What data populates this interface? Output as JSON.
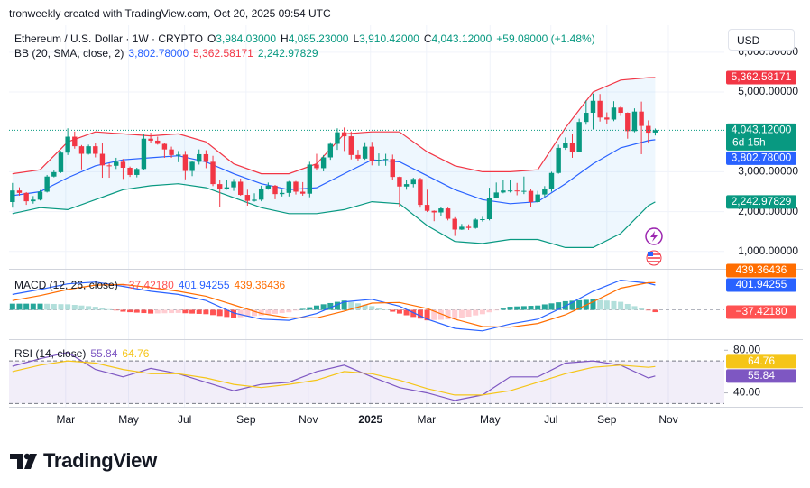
{
  "header": {
    "credit": "tronweekly created with TradingView.com, Oct 20, 2025 09:54 UTC",
    "button": "USD"
  },
  "footer": "TradingView",
  "chart_data": [
    {
      "type": "candlestick",
      "title": "Ethereum / U.S. Dollar · 1W · CRYPTO",
      "legend": [
        {
          "key": "O",
          "value": "3,984.03000"
        },
        {
          "key": "H",
          "value": "4,085.23000"
        },
        {
          "key": "L",
          "value": "3,910.42000"
        },
        {
          "key": "C",
          "value": "4,043.12000"
        }
      ],
      "change": "+59.08000 (+1.48%)",
      "countdown": "6d 15h",
      "colors": {
        "up": "#089981",
        "down": "#f23645"
      },
      "candles": [
        [
          2240,
          2720,
          2100,
          2530
        ],
        [
          2530,
          2610,
          2400,
          2470
        ],
        [
          2470,
          2490,
          2170,
          2260
        ],
        [
          2260,
          2390,
          2200,
          2300
        ],
        [
          2300,
          2540,
          2280,
          2500
        ],
        [
          2500,
          2920,
          2480,
          2880
        ],
        [
          2880,
          3030,
          2860,
          2990
        ],
        [
          2990,
          3520,
          2970,
          3480
        ],
        [
          3480,
          4090,
          3420,
          3880
        ],
        [
          3880,
          4010,
          3580,
          3640
        ],
        [
          3640,
          3670,
          3060,
          3450
        ],
        [
          3450,
          3680,
          3430,
          3640
        ],
        [
          3640,
          3730,
          3360,
          3450
        ],
        [
          3450,
          3720,
          2850,
          3160
        ],
        [
          3160,
          3210,
          2850,
          3150
        ],
        [
          3150,
          3350,
          3070,
          3250
        ],
        [
          3250,
          3320,
          2820,
          3100
        ],
        [
          3100,
          3130,
          2870,
          2920
        ],
        [
          2920,
          3100,
          2860,
          3070
        ],
        [
          3070,
          3950,
          3050,
          3830
        ],
        [
          3830,
          3980,
          3730,
          3780
        ],
        [
          3780,
          3880,
          3680,
          3700
        ],
        [
          3700,
          3720,
          3350,
          3560
        ],
        [
          3560,
          3630,
          3350,
          3420
        ],
        [
          3420,
          3520,
          3240,
          3430
        ],
        [
          3430,
          3520,
          2810,
          3020
        ],
        [
          3020,
          3270,
          2890,
          3250
        ],
        [
          3250,
          3560,
          3180,
          3440
        ],
        [
          3440,
          3540,
          3090,
          3250
        ],
        [
          3250,
          3400,
          2640,
          2690
        ],
        [
          2690,
          2790,
          2120,
          2560
        ],
        [
          2560,
          2790,
          2550,
          2610
        ],
        [
          2610,
          2820,
          2520,
          2750
        ],
        [
          2750,
          2830,
          2400,
          2420
        ],
        [
          2420,
          2550,
          2150,
          2270
        ],
        [
          2270,
          2460,
          2250,
          2300
        ],
        [
          2300,
          2650,
          2260,
          2580
        ],
        [
          2580,
          2730,
          2550,
          2650
        ],
        [
          2650,
          2670,
          2310,
          2440
        ],
        [
          2440,
          2550,
          2380,
          2470
        ],
        [
          2470,
          2770,
          2380,
          2750
        ],
        [
          2750,
          2770,
          2430,
          2500
        ],
        [
          2500,
          2740,
          2400,
          2450
        ],
        [
          2450,
          3250,
          2360,
          3180
        ],
        [
          3180,
          3450,
          3030,
          3090
        ],
        [
          3090,
          3420,
          3010,
          3360
        ],
        [
          3360,
          3740,
          3300,
          3700
        ],
        [
          3700,
          4090,
          3550,
          3990
        ],
        [
          3990,
          4110,
          3520,
          3890
        ],
        [
          3890,
          4010,
          3310,
          3420
        ],
        [
          3420,
          3550,
          3260,
          3330
        ],
        [
          3330,
          3740,
          3300,
          3630
        ],
        [
          3630,
          3750,
          3160,
          3270
        ],
        [
          3270,
          3460,
          3150,
          3300
        ],
        [
          3300,
          3450,
          3150,
          3320
        ],
        [
          3320,
          3430,
          2800,
          2870
        ],
        [
          2870,
          2880,
          2120,
          2630
        ],
        [
          2630,
          2790,
          2550,
          2690
        ],
        [
          2690,
          2850,
          2610,
          2820
        ],
        [
          2820,
          2850,
          2100,
          2170
        ],
        [
          2170,
          2550,
          1990,
          2020
        ],
        [
          2020,
          2030,
          1760,
          1980
        ],
        [
          1980,
          2120,
          1890,
          2080
        ],
        [
          2080,
          2100,
          1780,
          1820
        ],
        [
          1820,
          1860,
          1390,
          1550
        ],
        [
          1550,
          1690,
          1540,
          1620
        ],
        [
          1620,
          1680,
          1540,
          1590
        ],
        [
          1590,
          1830,
          1570,
          1800
        ],
        [
          1800,
          1870,
          1750,
          1810
        ],
        [
          1810,
          2600,
          1780,
          2350
        ],
        [
          2350,
          2730,
          2330,
          2480
        ],
        [
          2480,
          2790,
          2460,
          2530
        ],
        [
          2530,
          2790,
          2480,
          2530
        ],
        [
          2530,
          2720,
          2410,
          2510
        ],
        [
          2510,
          2880,
          2440,
          2520
        ],
        [
          2520,
          2560,
          2120,
          2240
        ],
        [
          2240,
          2520,
          2230,
          2430
        ],
        [
          2430,
          2640,
          2370,
          2560
        ],
        [
          2560,
          3000,
          2500,
          2970
        ],
        [
          2970,
          3680,
          2950,
          3600
        ],
        [
          3600,
          3860,
          3550,
          3720
        ],
        [
          3720,
          3940,
          3350,
          3490
        ],
        [
          3490,
          4330,
          3490,
          4250
        ],
        [
          4250,
          4790,
          4180,
          4480
        ],
        [
          4480,
          4960,
          4060,
          4780
        ],
        [
          4780,
          4950,
          4260,
          4360
        ],
        [
          4360,
          4490,
          4210,
          4310
        ],
        [
          4310,
          4770,
          4270,
          4610
        ],
        [
          4610,
          4640,
          4400,
          4480
        ],
        [
          4480,
          4490,
          3830,
          4020
        ],
        [
          4020,
          4590,
          3990,
          4510
        ],
        [
          4510,
          4760,
          3440,
          4150
        ],
        [
          4150,
          4290,
          3710,
          3980
        ],
        [
          3984.03,
          4085.23,
          3910.42,
          4043.12
        ]
      ],
      "overlay": {
        "title": "BB (20, SMA, close, 2)",
        "fill": "rgba(33,150,243,0.08)",
        "x": [
          0,
          4,
          8,
          12,
          16,
          20,
          24,
          28,
          32,
          36,
          40,
          44,
          48,
          52,
          56,
          60,
          64,
          68,
          72,
          76,
          80,
          84,
          88,
          92,
          93
        ],
        "series": [
          {
            "label": "3,802.78000",
            "color": "#2962ff",
            "values": [
              2400,
              2500,
              2850,
              3150,
              3300,
              3350,
              3400,
              3250,
              2950,
              2700,
              2550,
              2600,
              2950,
              3300,
              3250,
              2900,
              2550,
              2300,
              2200,
              2250,
              2700,
              3200,
              3600,
              3780,
              3802.78
            ]
          },
          {
            "label": "5,362.58171",
            "color": "#f23645",
            "values": [
              2950,
              3050,
              3750,
              4000,
              3950,
              3900,
              3950,
              3750,
              3200,
              2950,
              2950,
              3200,
              3950,
              4000,
              4000,
              3500,
              3150,
              3000,
              3000,
              3050,
              4100,
              5000,
              5300,
              5360,
              5362.58171
            ]
          },
          {
            "label": "2,242.97829",
            "color": "#089981",
            "values": [
              1950,
              2100,
              2050,
              2300,
              2550,
              2650,
              2700,
              2600,
              2350,
              2100,
              1950,
              1950,
              2050,
              2250,
              2200,
              1650,
              1250,
              1200,
              1300,
              1300,
              1100,
              1100,
              1450,
              2150,
              2242.97829
            ]
          }
        ]
      },
      "xlim": [
        -0.5,
        102.6
      ],
      "xticks": [
        {
          "value": 7.7,
          "label": "Mar"
        },
        {
          "value": 16.8,
          "label": "May"
        },
        {
          "value": 24.9,
          "label": "Jul"
        },
        {
          "value": 33.8,
          "label": "Sep"
        },
        {
          "value": 42.8,
          "label": "Nov"
        },
        {
          "value": 51.8,
          "label": "2025"
        },
        {
          "value": 59.9,
          "label": "Mar"
        },
        {
          "value": 69.1,
          "label": "May"
        },
        {
          "value": 77.9,
          "label": "Jul"
        },
        {
          "value": 86,
          "label": "Sep"
        },
        {
          "value": 94.9,
          "label": "Nov"
        }
      ],
      "ylim": [
        588,
        6630
      ],
      "yticks": [
        {
          "value": 1000,
          "label": "1,000.00000"
        },
        {
          "value": 2000,
          "label": "2,000.00000"
        },
        {
          "value": 3000,
          "label": "3,000.00000"
        },
        {
          "value": 5000,
          "label": "5,000.00000"
        },
        {
          "value": 6000,
          "label": "6,000.00000"
        }
      ],
      "grid": true
    },
    {
      "type": "macd",
      "title": "MACD (12, 26, close)",
      "histogram": {
        "label": "−37.42180",
        "colors": {
          "up_strong": "#26a69a",
          "up_weak": "#b2dfdb",
          "down_strong": "#ff5252",
          "down_weak": "#ffcdd2"
        },
        "values": [
          100,
          100,
          100,
          100,
          100,
          98,
          95,
          92,
          90,
          80,
          70,
          60,
          50,
          30,
          10,
          -10,
          -30,
          -38,
          -45,
          -52,
          -60,
          -58,
          -55,
          -52,
          -50,
          -55,
          -60,
          -65,
          -70,
          -85,
          -100,
          -115,
          -130,
          -120,
          -110,
          -100,
          -90,
          -78,
          -65,
          -52,
          -40,
          -12,
          15,
          42,
          70,
          90,
          110,
          130,
          150,
          128,
          105,
          82,
          60,
          30,
          0,
          -30,
          -60,
          -88,
          -115,
          -142,
          -170,
          -165,
          -160,
          -155,
          -150,
          -130,
          -110,
          -90,
          -70,
          -40,
          -10,
          20,
          50,
          55,
          60,
          65,
          70,
          88,
          105,
          122,
          140,
          148,
          155,
          162,
          170,
          160,
          150,
          140,
          130,
          95,
          60,
          25,
          -10,
          -37.4218
        ]
      },
      "x": [
        0,
        4,
        8,
        12,
        16,
        20,
        24,
        28,
        32,
        36,
        40,
        44,
        48,
        52,
        56,
        60,
        64,
        68,
        72,
        76,
        80,
        84,
        88,
        92,
        93
      ],
      "series": [
        {
          "label": "401.94255",
          "color": "#2962ff",
          "values": [
            250,
            330,
            420,
            450,
            380,
            300,
            250,
            150,
            -50,
            -150,
            -170,
            -60,
            130,
            170,
            60,
            -150,
            -300,
            -340,
            -230,
            -150,
            60,
            300,
            480,
            430,
            401.94255
          ]
        },
        {
          "label": "439.36436",
          "color": "#ff6d00",
          "values": [
            150,
            230,
            330,
            400,
            410,
            360,
            300,
            220,
            80,
            -60,
            -130,
            -130,
            -20,
            110,
            120,
            20,
            -150,
            -270,
            -280,
            -220,
            -80,
            130,
            350,
            440,
            439.36436
          ]
        }
      ],
      "ylim": [
        -460,
        635
      ]
    },
    {
      "type": "rsi",
      "title": "RSI (14, close)",
      "x": [
        0,
        4,
        8,
        12,
        16,
        20,
        24,
        28,
        32,
        36,
        40,
        44,
        48,
        52,
        56,
        60,
        64,
        68,
        72,
        76,
        80,
        84,
        88,
        92,
        93
      ],
      "series": [
        {
          "label": "55.84",
          "color": "#7e57c2",
          "values": [
            65,
            72,
            78,
            62,
            55,
            63,
            58,
            50,
            42,
            48,
            50,
            60,
            66,
            55,
            45,
            40,
            33,
            38,
            55,
            55,
            68,
            70,
            66,
            54,
            55.84
          ]
        },
        {
          "label": "64.76",
          "color": "#f5c518",
          "values": [
            60,
            66,
            70,
            68,
            62,
            58,
            58,
            54,
            48,
            45,
            48,
            52,
            60,
            58,
            52,
            44,
            38,
            38,
            42,
            50,
            58,
            64,
            66,
            64,
            64.76
          ]
        }
      ],
      "band": [
        30,
        70
      ],
      "band_fill": "rgba(126,87,194,0.1)",
      "ylim": [
        27.8,
        88.7
      ],
      "yticks": [
        {
          "value": 40,
          "label": "40.00"
        },
        {
          "value": 80,
          "label": "80.00"
        }
      ]
    }
  ]
}
